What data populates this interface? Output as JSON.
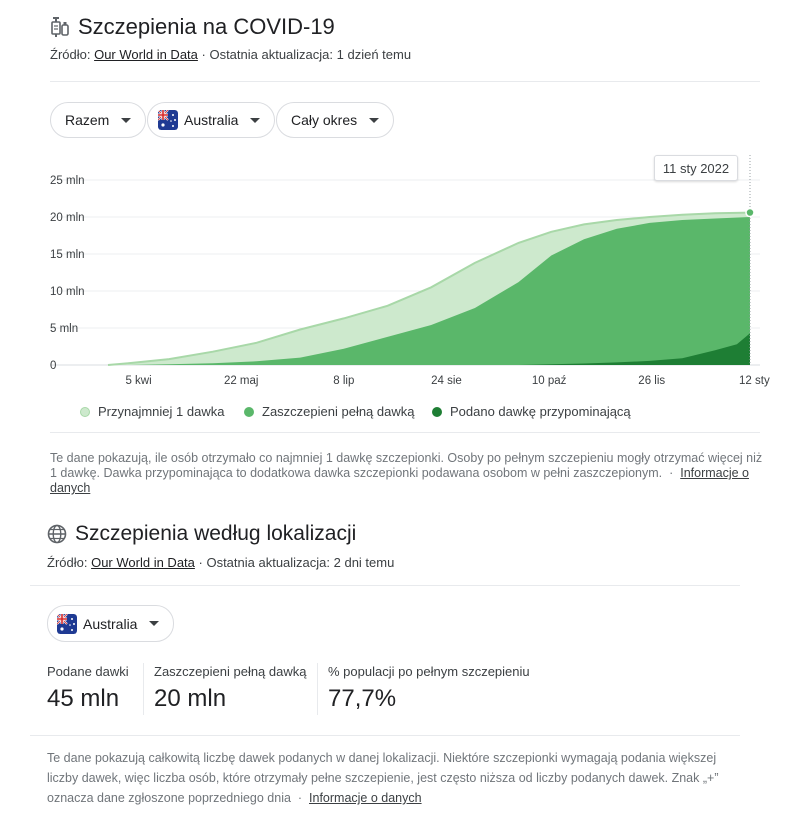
{
  "section1": {
    "title": "Szczepienia na COVID-19",
    "source_prefix": "Źródło:",
    "source_link": "Our World in Data",
    "source_suffix": "· Ostatnia aktualizacja: 1 dzień temu",
    "filters": [
      "Razem",
      "Australia",
      "Cały okres"
    ],
    "tooltip_date": "11 sty 2022",
    "legend": [
      "Przynajmniej 1 dawka",
      "Zaszczepieni pełną dawką",
      "Podano dawkę przypominającą"
    ],
    "note": "Te dane pokazują, ile osób otrzymało co najmniej 1 dawkę szczepionki. Osoby po pełnym szczepieniu mogły otrzymać więcej niż 1 dawkę. Dawka przypominająca to dodatkowa dawka szczepionki podawana osobom w pełni zaszczepionym.",
    "note_sep": "·",
    "note_link": "Informacje o danych"
  },
  "section2": {
    "title": "Szczepienia według lokalizacji",
    "source_prefix": "Źródło:",
    "source_link": "Our World in Data",
    "source_suffix": "· Ostatnia aktualizacja: 2 dni temu",
    "location": "Australia",
    "stats": [
      {
        "label": "Podane dawki",
        "value": "45 mln"
      },
      {
        "label": "Zaszczepieni pełną dawką",
        "value": "20 mln"
      },
      {
        "label": "% populacji po pełnym szczepieniu",
        "value": "77,7%"
      }
    ],
    "note": "Te dane pokazują całkowitą liczbę dawek podanych w danej lokalizacji. Niektóre szczepionki wymagają podania większej liczby dawek, więc liczba osób, które otrzymały pełne szczepienie, jest często niższa od liczby podanych dawek. Znak „+” oznacza dane zgłoszone poprzedniego dnia",
    "note_sep": "·",
    "note_link": "Informacje o danych"
  },
  "colors": {
    "at_least_one": "#cde9cd",
    "at_least_one_line": "#a8d8a8",
    "fully": "#5ab76a",
    "booster": "#1e7e34"
  },
  "icons": {
    "syringe": "syringe-icon",
    "globe": "globe-icon",
    "caret": "caret-down-icon",
    "flag": "australia-flag-icon"
  },
  "chart_data": {
    "type": "area",
    "y_tick_labels": [
      "0",
      "5 mln",
      "10 mln",
      "15 mln",
      "20 mln",
      "25 mln"
    ],
    "y_ticks": [
      0,
      5,
      10,
      15,
      20,
      25
    ],
    "ylim": [
      0,
      25
    ],
    "x_tick_labels": [
      "5 kwi",
      "22 maj",
      "8 lip",
      "24 sie",
      "10 paź",
      "26 lis",
      "12 sty"
    ],
    "x_tick_days": [
      66,
      113,
      160,
      207,
      254,
      301,
      348
    ],
    "x_start_day": 52,
    "x_end_day": 346,
    "grid": true,
    "legend_position": "bottom",
    "series": [
      {
        "name": "Przynajmniej 1 dawka",
        "x": [
          52,
          60,
          80,
          100,
          120,
          140,
          160,
          180,
          200,
          220,
          240,
          255,
          270,
          285,
          300,
          315,
          330,
          346
        ],
        "values": [
          0,
          0.2,
          0.8,
          1.8,
          3.0,
          4.8,
          6.3,
          8.0,
          10.5,
          13.8,
          16.5,
          18.0,
          19.0,
          19.6,
          20.0,
          20.3,
          20.5,
          20.6
        ]
      },
      {
        "name": "Zaszczepieni pełną dawką",
        "x": [
          52,
          60,
          80,
          100,
          120,
          140,
          160,
          180,
          200,
          220,
          240,
          255,
          270,
          285,
          300,
          315,
          330,
          346
        ],
        "values": [
          0,
          0,
          0.1,
          0.25,
          0.5,
          1.0,
          2.2,
          3.8,
          5.4,
          7.7,
          11.2,
          14.8,
          17.0,
          18.4,
          19.2,
          19.6,
          19.8,
          20.0
        ]
      },
      {
        "name": "Podano dawkę przypominającą",
        "x": [
          52,
          240,
          255,
          270,
          285,
          300,
          315,
          330,
          340,
          346
        ],
        "values": [
          0,
          0,
          0.1,
          0.2,
          0.35,
          0.55,
          0.9,
          2.0,
          2.8,
          4.3
        ]
      }
    ]
  }
}
